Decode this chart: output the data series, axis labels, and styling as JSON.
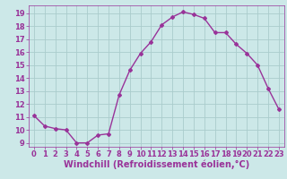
{
  "x": [
    0,
    1,
    2,
    3,
    4,
    5,
    6,
    7,
    8,
    9,
    10,
    11,
    12,
    13,
    14,
    15,
    16,
    17,
    18,
    19,
    20,
    21,
    22,
    23
  ],
  "y": [
    11.1,
    10.3,
    10.1,
    10.0,
    9.0,
    9.0,
    9.6,
    9.7,
    12.7,
    14.6,
    15.9,
    16.8,
    18.1,
    18.7,
    19.1,
    18.9,
    18.6,
    17.5,
    17.5,
    16.6,
    15.9,
    15.0,
    13.2,
    11.6
  ],
  "line_color": "#993399",
  "marker": "D",
  "marker_size": 2.0,
  "bg_color": "#cce8e8",
  "grid_color": "#aacccc",
  "xlabel": "Windchill (Refroidissement éolien,°C)",
  "xlabel_color": "#993399",
  "ylim_min": 8.7,
  "ylim_max": 19.6,
  "xlim_min": -0.5,
  "xlim_max": 23.5,
  "yticks": [
    9,
    10,
    11,
    12,
    13,
    14,
    15,
    16,
    17,
    18,
    19
  ],
  "xticks": [
    0,
    1,
    2,
    3,
    4,
    5,
    6,
    7,
    8,
    9,
    10,
    11,
    12,
    13,
    14,
    15,
    16,
    17,
    18,
    19,
    20,
    21,
    22,
    23
  ],
  "tick_color": "#993399",
  "tick_label_fontsize": 6.0,
  "xlabel_fontsize": 7.0,
  "linewidth": 1.0
}
